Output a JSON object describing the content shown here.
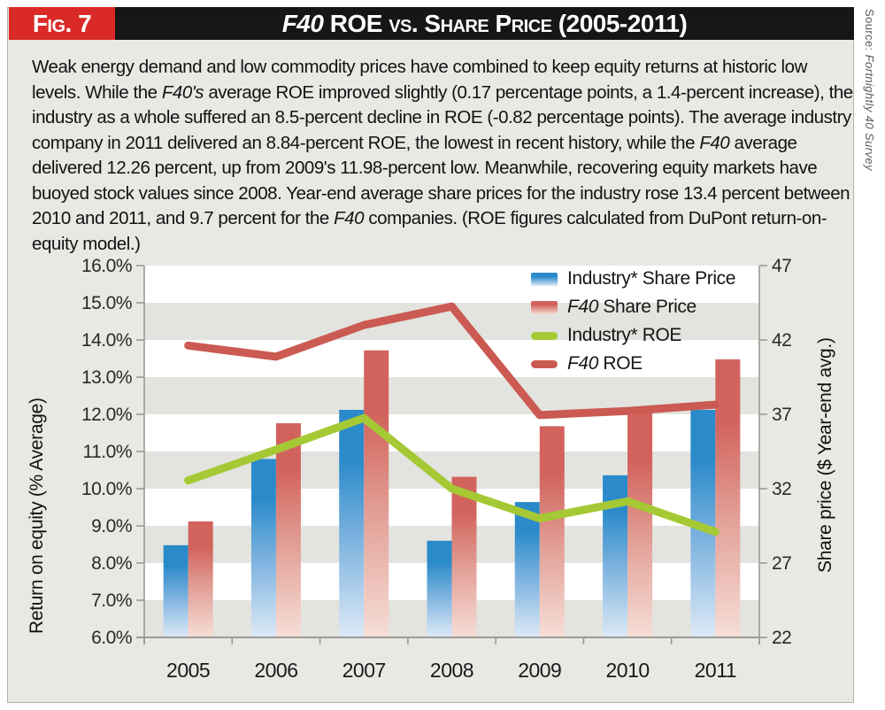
{
  "figure": {
    "fig_label": "Fig. 7",
    "accent_red": "#da2a27",
    "header_black": "#161616",
    "title_segments": [
      {
        "text": "F40 ",
        "italic": true
      },
      {
        "text": "ROE vs. Share Price (2005-2011)"
      }
    ],
    "source_segments": [
      {
        "text": "Source: "
      },
      {
        "text": "Fortnightly 40 Survey",
        "italic": true
      }
    ],
    "description_segments": [
      {
        "text": "Weak energy demand and low commodity prices have combined to keep equity returns at historic low levels. While the "
      },
      {
        "text": "F40's",
        "italic": true
      },
      {
        "text": " average ROE improved slightly (0.17 percentage points, a 1.4-percent increase), the industry as a whole suffered an 8.5-percent decline in ROE (-0.82 percentage points). The average industry company in 2011 delivered an 8.84-percent ROE, the lowest in recent history, while the "
      },
      {
        "text": "F40",
        "italic": true
      },
      {
        "text": " average delivered 12.26 percent, up from 2009's 11.98-percent low. Meanwhile, recovering equity markets have buoyed stock values since 2008. Year-end average share prices for the industry rose 13.4 percent between 2010 and 2011, and 9.7 percent for the "
      },
      {
        "text": "F40",
        "italic": true
      },
      {
        "text": " companies. (ROE figures calculated from DuPont return-on-equity model.)"
      }
    ]
  },
  "chart_data": {
    "type": "combo-bar-line",
    "categories": [
      "2005",
      "2006",
      "2007",
      "2008",
      "2009",
      "2010",
      "2011"
    ],
    "bar_series": [
      {
        "name": "Industry* Share Price",
        "axis": "right",
        "color_top": "#2b8aca",
        "color_mid": "#7fb4e0",
        "color_bottom": "#dde9f6",
        "values": [
          28.2,
          34.0,
          37.3,
          28.5,
          31.1,
          32.9,
          37.3
        ]
      },
      {
        "name": "F40 Share Price",
        "axis": "right",
        "color_top": "#d2635c",
        "color_mid": "#e2a198",
        "color_bottom": "#f6ded6",
        "values": [
          29.8,
          36.4,
          41.3,
          32.8,
          36.2,
          37.1,
          40.7
        ]
      }
    ],
    "line_series": [
      {
        "name": "Industry* ROE",
        "axis": "left",
        "color": "#a5c934",
        "values": [
          10.22,
          11.05,
          11.9,
          10.0,
          9.2,
          9.66,
          8.84
        ]
      },
      {
        "name": "F40 ROE",
        "axis": "left",
        "color": "#cb5a52",
        "values": [
          13.85,
          13.55,
          14.4,
          14.9,
          11.98,
          12.09,
          12.26
        ]
      }
    ],
    "left_axis": {
      "title": "Return on equity (% Average)",
      "min": 6,
      "max": 16,
      "ticks": [
        "16.0%",
        "15.0%",
        "14.0%",
        "13.0%",
        "12.0%",
        "11.0%",
        "10.0%",
        "9.0%",
        "8.0%",
        "7.0%",
        "6.0%"
      ]
    },
    "right_axis": {
      "title": "Share price ($ Year-end avg.)",
      "min": 22,
      "max": 47,
      "ticks": [
        "47",
        "42",
        "37",
        "32",
        "27",
        "22"
      ]
    },
    "stripe_color": "#e3e4df",
    "plot_bg": "#ffffff",
    "axis_color": "#9b9b95",
    "legend": [
      {
        "swatch": "bar-0",
        "icon": "blue-bar-swatch",
        "label": [
          {
            "text": "Industry* Share Price"
          }
        ]
      },
      {
        "swatch": "bar-1",
        "icon": "red-bar-swatch",
        "label": [
          {
            "text": "F40",
            "italic": true
          },
          {
            "text": " Share Price"
          }
        ]
      },
      {
        "swatch": "line-0",
        "icon": "green-line-swatch",
        "label": [
          {
            "text": "Industry* ROE"
          }
        ]
      },
      {
        "swatch": "line-1",
        "icon": "red-line-swatch",
        "label": [
          {
            "text": "F40",
            "italic": true
          },
          {
            "text": " ROE"
          }
        ]
      }
    ],
    "legend_position": "top-right",
    "grid": "horizontal-bands"
  }
}
